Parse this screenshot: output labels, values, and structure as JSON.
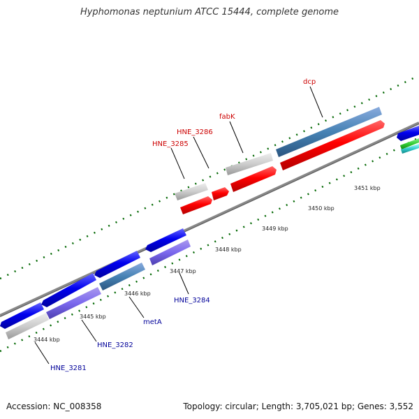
{
  "title": "Hyphomonas neptunium ATCC 15444, complete genome",
  "footer": {
    "accession": "Accession: NC_008358",
    "stats": "Topology: circular; Length: 3,705,021 bp; Genes: 3,552"
  },
  "colors": {
    "forward_label": "#cc0000",
    "reverse_label": "#000099",
    "backbone": "#808080",
    "tick": "#006600"
  },
  "kbp_labels": [
    "3444 kbp",
    "3445 kbp",
    "3446 kbp",
    "3447 kbp",
    "3448 kbp",
    "3449 kbp",
    "3450 kbp",
    "3451 kbp"
  ],
  "gene_labels": {
    "forward": [
      "HNE_3285",
      "HNE_3286",
      "fabK",
      "dcp"
    ],
    "reverse": [
      "HNE_3281",
      "HNE_3282",
      "metA",
      "HNE_3284"
    ]
  }
}
